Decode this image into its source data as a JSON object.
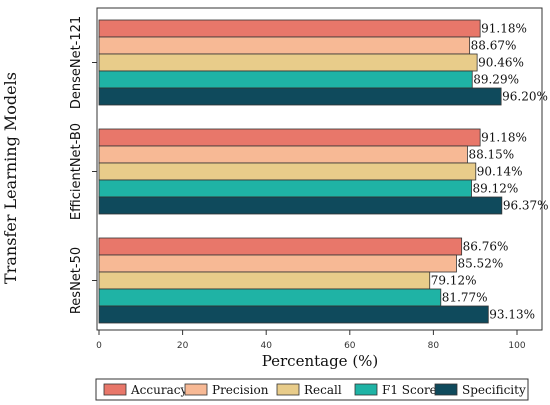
{
  "chart_data": {
    "type": "bar",
    "orientation": "horizontal",
    "ylabel": "Transfer Learning Models",
    "xlabel": "Percentage (%)",
    "xlim": [
      0,
      100
    ],
    "xticks": [
      0,
      20,
      40,
      60,
      80,
      100
    ],
    "grid": false,
    "legend_position": "bottom",
    "categories": [
      "DenseNet-121",
      "EfficientNet-B0",
      "ResNet-50"
    ],
    "series": [
      {
        "name": "Accuracy",
        "color": "#E8776A",
        "values": [
          91.18,
          91.18,
          86.76
        ],
        "labels": [
          "91.18%",
          "91.18%",
          "86.76%"
        ]
      },
      {
        "name": "Precision",
        "color": "#F7B995",
        "values": [
          88.67,
          88.15,
          85.52
        ],
        "labels": [
          "88.67%",
          "88.15%",
          "85.52%"
        ]
      },
      {
        "name": "Recall",
        "color": "#E8CC8A",
        "values": [
          90.46,
          90.14,
          79.12
        ],
        "labels": [
          "90.46%",
          "90.14%",
          "79.12%"
        ]
      },
      {
        "name": "F1 Score",
        "color": "#1FB3A5",
        "values": [
          89.29,
          89.12,
          81.77
        ],
        "labels": [
          "89.29%",
          "89.12%",
          "81.77%"
        ]
      },
      {
        "name": "Specificity",
        "color": "#0F4A5C",
        "values": [
          96.2,
          96.37,
          93.13
        ],
        "labels": [
          "96.20%",
          "96.37%",
          "93.13%"
        ]
      }
    ]
  }
}
